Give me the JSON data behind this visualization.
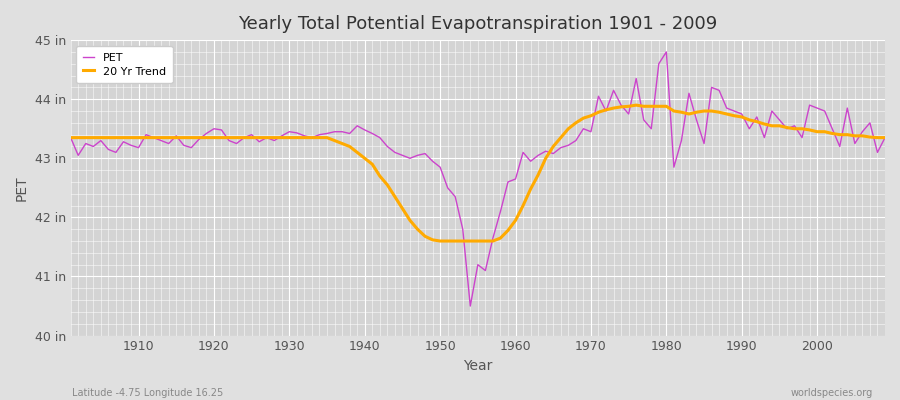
{
  "title": "Yearly Total Potential Evapotranspiration 1901 - 2009",
  "xlabel": "Year",
  "ylabel": "PET",
  "bottom_left": "Latitude -4.75 Longitude 16.25",
  "bottom_right": "worldspecies.org",
  "background_color": "#e0e0e0",
  "plot_bg_color": "#d4d4d4",
  "pet_color": "#cc44cc",
  "trend_color": "#ffaa00",
  "ylim": [
    40,
    45
  ],
  "yticks": [
    40,
    41,
    42,
    43,
    44,
    45
  ],
  "ytick_labels": [
    "40 in",
    "41 in",
    "42 in",
    "43 in",
    "44 in",
    "45 in"
  ],
  "xlim": [
    1901,
    2009
  ],
  "xticks": [
    1910,
    1920,
    1930,
    1940,
    1950,
    1960,
    1970,
    1980,
    1990,
    2000
  ],
  "years": [
    1901,
    1902,
    1903,
    1904,
    1905,
    1906,
    1907,
    1908,
    1909,
    1910,
    1911,
    1912,
    1913,
    1914,
    1915,
    1916,
    1917,
    1918,
    1919,
    1920,
    1921,
    1922,
    1923,
    1924,
    1925,
    1926,
    1927,
    1928,
    1929,
    1930,
    1931,
    1932,
    1933,
    1934,
    1935,
    1936,
    1937,
    1938,
    1939,
    1940,
    1941,
    1942,
    1943,
    1944,
    1945,
    1946,
    1947,
    1948,
    1949,
    1950,
    1951,
    1952,
    1953,
    1954,
    1955,
    1956,
    1957,
    1958,
    1959,
    1960,
    1961,
    1962,
    1963,
    1964,
    1965,
    1966,
    1967,
    1968,
    1969,
    1970,
    1971,
    1972,
    1973,
    1974,
    1975,
    1976,
    1977,
    1978,
    1979,
    1980,
    1981,
    1982,
    1983,
    1984,
    1985,
    1986,
    1987,
    1988,
    1989,
    1990,
    1991,
    1992,
    1993,
    1994,
    1995,
    1996,
    1997,
    1998,
    1999,
    2000,
    2001,
    2002,
    2003,
    2004,
    2005,
    2006,
    2007,
    2008,
    2009
  ],
  "pet": [
    43.35,
    43.05,
    43.25,
    43.2,
    43.3,
    43.15,
    43.1,
    43.28,
    43.22,
    43.18,
    43.4,
    43.35,
    43.3,
    43.25,
    43.38,
    43.22,
    43.18,
    43.32,
    43.42,
    43.5,
    43.48,
    43.3,
    43.25,
    43.35,
    43.4,
    43.28,
    43.35,
    43.3,
    43.38,
    43.45,
    43.43,
    43.38,
    43.35,
    43.4,
    43.42,
    43.45,
    43.45,
    43.42,
    43.55,
    43.48,
    43.42,
    43.35,
    43.2,
    43.1,
    43.05,
    43.0,
    43.05,
    43.08,
    42.95,
    42.85,
    42.5,
    42.35,
    41.8,
    40.5,
    41.2,
    41.1,
    41.65,
    42.1,
    42.6,
    42.65,
    43.1,
    42.95,
    43.05,
    43.12,
    43.08,
    43.18,
    43.22,
    43.3,
    43.5,
    43.45,
    44.05,
    43.8,
    44.15,
    43.9,
    43.75,
    44.35,
    43.65,
    43.5,
    44.6,
    44.8,
    42.85,
    43.3,
    44.1,
    43.65,
    43.25,
    44.2,
    44.15,
    43.85,
    43.8,
    43.75,
    43.5,
    43.7,
    43.35,
    43.8,
    43.65,
    43.5,
    43.55,
    43.35,
    43.9,
    43.85,
    43.8,
    43.5,
    43.2,
    43.85,
    43.25,
    43.45,
    43.6,
    43.1,
    43.35
  ],
  "trend": [
    43.35,
    43.35,
    43.35,
    43.35,
    43.35,
    43.35,
    43.35,
    43.35,
    43.35,
    43.35,
    43.35,
    43.35,
    43.35,
    43.35,
    43.35,
    43.35,
    43.35,
    43.35,
    43.35,
    43.35,
    43.35,
    43.35,
    43.35,
    43.35,
    43.35,
    43.35,
    43.35,
    43.35,
    43.35,
    43.35,
    43.35,
    43.35,
    43.35,
    43.35,
    43.35,
    43.3,
    43.25,
    43.2,
    43.1,
    43.0,
    42.9,
    42.7,
    42.55,
    42.35,
    42.15,
    41.95,
    41.8,
    41.68,
    41.62,
    41.6,
    41.6,
    41.6,
    41.6,
    41.6,
    41.6,
    41.6,
    41.6,
    41.65,
    41.78,
    41.95,
    42.2,
    42.48,
    42.72,
    43.0,
    43.2,
    43.35,
    43.5,
    43.6,
    43.68,
    43.72,
    43.78,
    43.82,
    43.85,
    43.87,
    43.88,
    43.9,
    43.88,
    43.88,
    43.88,
    43.88,
    43.8,
    43.78,
    43.75,
    43.78,
    43.8,
    43.8,
    43.78,
    43.75,
    43.72,
    43.7,
    43.65,
    43.62,
    43.58,
    43.55,
    43.55,
    43.52,
    43.5,
    43.5,
    43.48,
    43.45,
    43.45,
    43.42,
    43.4,
    43.4,
    43.38,
    43.38,
    43.36,
    43.35,
    43.35
  ]
}
